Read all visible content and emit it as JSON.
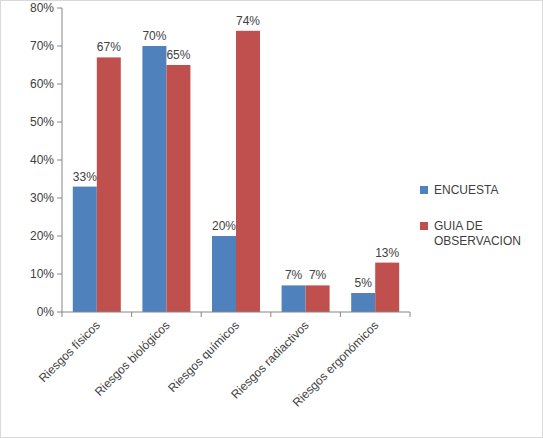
{
  "chart_data": {
    "type": "bar",
    "categories": [
      "Riesgos físicos",
      "Riesgos biológicos",
      "Riesgos químicos",
      "Riesgos radiactivos",
      "Riesgos ergonómicos"
    ],
    "series": [
      {
        "name": "ENCUESTA",
        "color": "#4f81bd",
        "values": [
          33,
          70,
          20,
          7,
          5
        ],
        "value_labels": [
          "33%",
          "70%",
          "20%",
          "7%",
          "5%"
        ]
      },
      {
        "name": "GUIA DE OBSERVACION",
        "color": "#c0504d",
        "values": [
          67,
          65,
          74,
          7,
          13
        ],
        "value_labels": [
          "67%",
          "65%",
          "74%",
          "7%",
          "13%"
        ]
      }
    ],
    "ylim": [
      0,
      80
    ],
    "yticks": [
      {
        "value": 0,
        "label": "0%"
      },
      {
        "value": 10,
        "label": "10%"
      },
      {
        "value": 20,
        "label": "20%"
      },
      {
        "value": 30,
        "label": "30%"
      },
      {
        "value": 40,
        "label": "40%"
      },
      {
        "value": 50,
        "label": "50%"
      },
      {
        "value": 60,
        "label": "60%"
      },
      {
        "value": 70,
        "label": "70%"
      },
      {
        "value": 80,
        "label": "80%"
      }
    ],
    "grid": false,
    "legend": "right",
    "data_labels": true
  }
}
